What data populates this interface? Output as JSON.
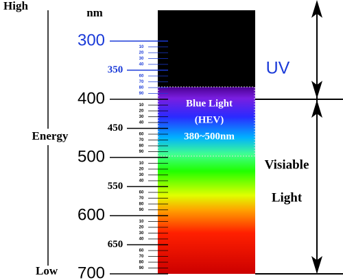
{
  "energy": {
    "high": "High",
    "low": "Low",
    "label": "Energy"
  },
  "scale": {
    "unit": "nm",
    "major_labels": [
      "300",
      "350",
      "400",
      "450",
      "500",
      "550",
      "600",
      "650",
      "700"
    ],
    "minor_labels": [
      [
        "10",
        "20",
        "30",
        "40",
        "60",
        "70",
        "80",
        "90"
      ],
      [
        "10",
        "20",
        "30",
        "40",
        "60",
        "70",
        "80",
        "90"
      ],
      [
        "10",
        "20",
        "30",
        "40",
        "60",
        "70",
        "80",
        "90"
      ],
      [
        "10",
        "20",
        "30",
        "40",
        "60",
        "70",
        "80",
        "90"
      ]
    ]
  },
  "blue_light": {
    "line1": "Blue Light",
    "line2": "(HEV)",
    "line3": "380~500nm"
  },
  "regions": {
    "uv": "UV",
    "visible_line1": "Visiable",
    "visible_line2": "Light"
  }
}
